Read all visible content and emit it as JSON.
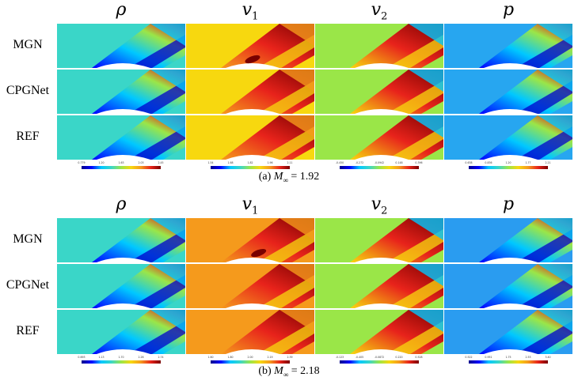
{
  "columns": [
    {
      "symbol": "ρ",
      "sub": ""
    },
    {
      "symbol": "v",
      "sub": "1"
    },
    {
      "symbol": "v",
      "sub": "2"
    },
    {
      "symbol": "p",
      "sub": ""
    }
  ],
  "rows": [
    "MGN",
    "CPGNet",
    "REF"
  ],
  "figures": [
    {
      "caption_label": "(a)",
      "caption_var": "M",
      "caption_sub": "∞",
      "caption_value": "= 1.92",
      "colorbars": [
        {
          "var": "rho",
          "ticks": [
            "0.779",
            "1.20",
            "1.63",
            "2.03",
            "2.45"
          ]
        },
        {
          "var": "v1",
          "ticks": [
            "1.54",
            "1.68",
            "1.82",
            "1.96",
            "2.11"
          ]
        },
        {
          "var": "v2",
          "ticks": [
            "-0.450",
            "-0.272",
            "-0.0942",
            "0.148",
            "0.396"
          ]
        },
        {
          "var": "p",
          "ticks": [
            "0.638",
            "0.836",
            "1.20",
            "1.77",
            "2.21"
          ]
        }
      ],
      "panel_fields": {
        "rho": "#3ad6c8",
        "v1": "#f7d80f",
        "v2": "#9ae648",
        "p": "#27a6f0"
      }
    },
    {
      "caption_label": "(b)",
      "caption_var": "M",
      "caption_sub": "∞",
      "caption_value": "= 2.18",
      "colorbars": [
        {
          "var": "rho",
          "ticks": [
            "0.693",
            "1.13",
            "1.70",
            "2.26",
            "2.74"
          ]
        },
        {
          "var": "v1",
          "ticks": [
            "1.60",
            "1.80",
            "2.00",
            "2.19",
            "2.39"
          ]
        },
        {
          "var": "v2",
          "ticks": [
            "-0.123",
            "-0.405",
            "-0.0872",
            "0.220",
            "0.528"
          ]
        },
        {
          "var": "p",
          "ticks": [
            "0.522",
            "0.951",
            "1.75",
            "2.53",
            "3.40"
          ]
        }
      ],
      "panel_fields": {
        "rho": "#3ad6c8",
        "v1": "#f59a1c",
        "v2": "#9ae648",
        "p": "#2a9cf0"
      }
    }
  ],
  "colors": {
    "colormap": [
      "#00008b",
      "#0000ff",
      "#00c8ff",
      "#3ad6c8",
      "#9ae648",
      "#f7d80f",
      "#f59a1c",
      "#e8231b",
      "#7a0000"
    ]
  }
}
